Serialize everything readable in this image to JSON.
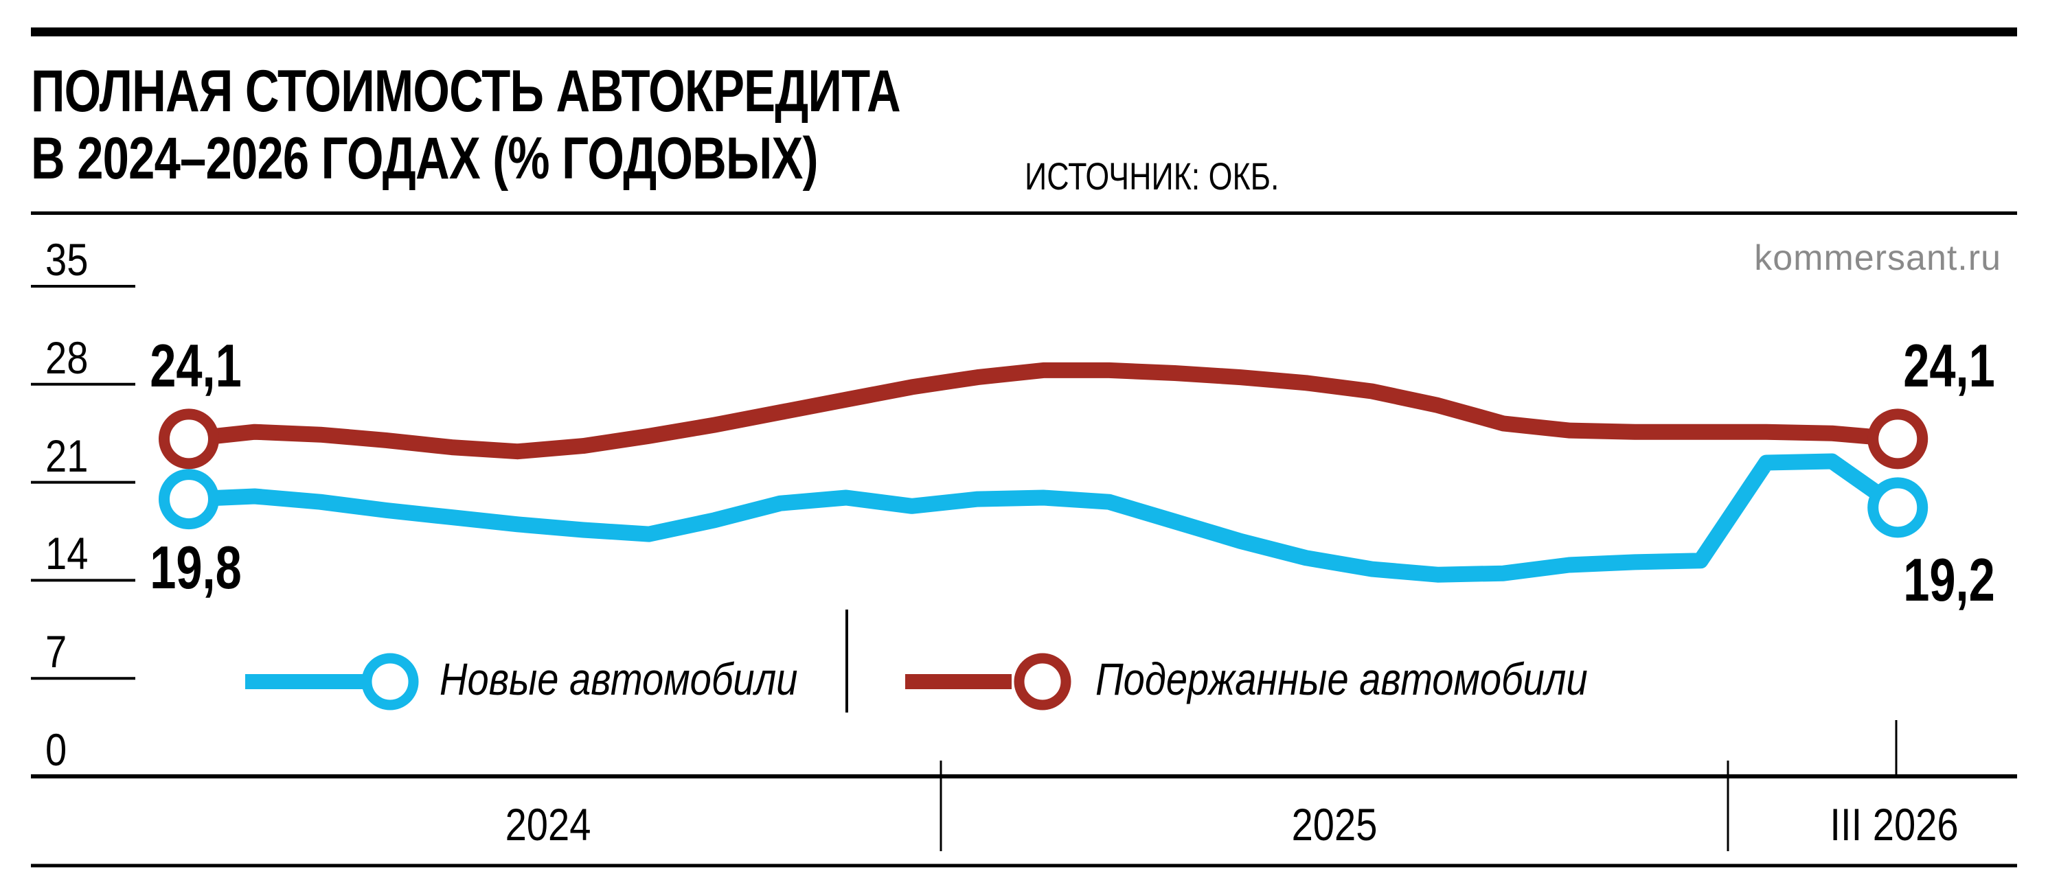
{
  "header": {
    "title_line1": "ПОЛНАЯ СТОИМОСТЬ АВТОКРЕДИТА",
    "title_line2": "В 2024–2026 ГОДАХ (% ГОДОВЫХ)",
    "source": "ИСТОЧНИК: ОКБ.",
    "watermark": "kommersant.ru"
  },
  "chart_data": {
    "type": "line",
    "title": "Полная стоимость автокредита в 2024–2026 годах (% годовых)",
    "source": "ОКБ",
    "unit": "% годовых",
    "ylim": [
      0,
      35
    ],
    "y_ticks": [
      35,
      28,
      21,
      14,
      7,
      0
    ],
    "x_sections": [
      "2024",
      "2025",
      "III 2026"
    ],
    "points_per_section": [
      12,
      12,
      3
    ],
    "legend_position": "inside-bottom",
    "series": [
      {
        "key": "new-cars",
        "name": "Новые автомобили",
        "color": "#14B7EA",
        "start_label": "19,8",
        "end_label": "19,2",
        "start_value": 19.8,
        "end_value": 19.2,
        "values": [
          19.8,
          20.0,
          19.6,
          19.0,
          18.5,
          18.0,
          17.6,
          17.3,
          18.3,
          19.5,
          19.9,
          19.3,
          19.8,
          19.9,
          19.6,
          18.2,
          16.8,
          15.6,
          14.8,
          14.4,
          14.5,
          15.1,
          15.3,
          15.4,
          22.4,
          22.5,
          19.2
        ]
      },
      {
        "key": "used-cars",
        "name": "Подержанные автомобили",
        "color": "#A32B22",
        "start_label": "24,1",
        "end_label": "24,1",
        "start_value": 24.1,
        "end_value": 24.1,
        "values": [
          24.1,
          24.6,
          24.4,
          24.0,
          23.5,
          23.2,
          23.6,
          24.3,
          25.1,
          26.0,
          26.9,
          27.8,
          28.5,
          29.0,
          29.0,
          28.8,
          28.5,
          28.1,
          27.5,
          26.5,
          25.2,
          24.7,
          24.6,
          24.6,
          24.6,
          24.5,
          24.1
        ]
      }
    ]
  }
}
